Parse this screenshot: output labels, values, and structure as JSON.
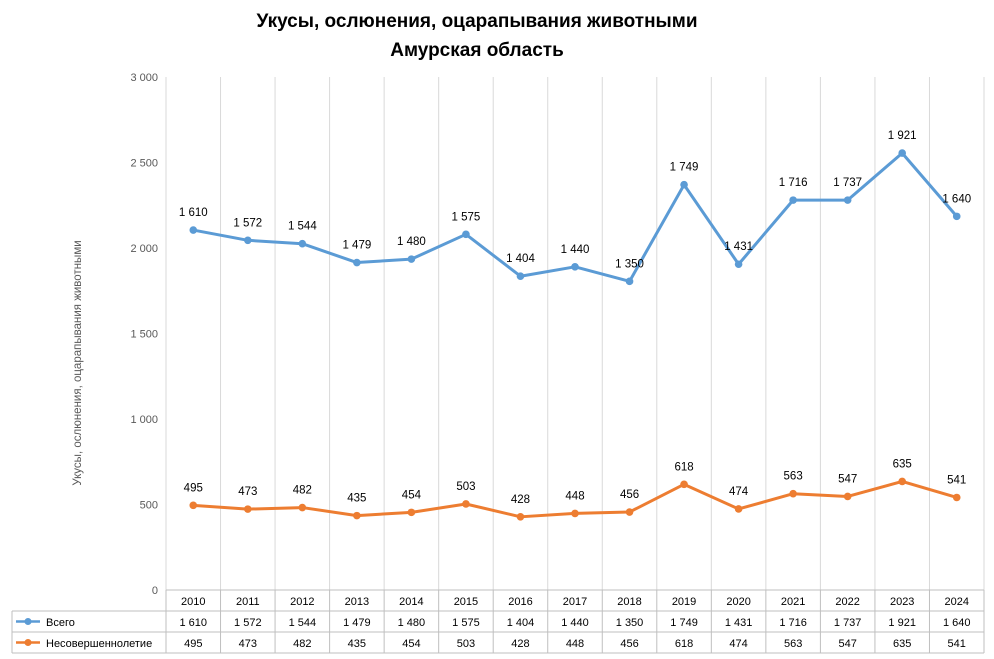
{
  "chart_data": {
    "type": "line",
    "title": "Укусы, ослюнения, оцарапывания животными",
    "subtitle": "Амурская область",
    "ylabel": "Укусы, ослюнения, оцарапывания животными",
    "xlabel": "",
    "ylim": [
      0,
      3000
    ],
    "yticks": [
      "0",
      "500",
      "1 000",
      "1 500",
      "2 000",
      "2 500",
      "3 000"
    ],
    "grid": "vertical",
    "legend": "data-table",
    "categories": [
      "2010",
      "2011",
      "2012",
      "2013",
      "2014",
      "2015",
      "2016",
      "2017",
      "2018",
      "2019",
      "2020",
      "2021",
      "2022",
      "2023",
      "2024"
    ],
    "series": [
      {
        "name": "Всего",
        "color": "#5B9BD5",
        "values": [
          2105,
          2045,
          2025,
          1915,
          1935,
          2080,
          1835,
          1890,
          1805,
          2370,
          1905,
          2280,
          2280,
          2555,
          2185
        ],
        "labels": [
          "1 610",
          "1 572",
          "1 544",
          "1 479",
          "1 480",
          "1 575",
          "1 404",
          "1 440",
          "1 350",
          "1 749",
          "1 431",
          "1 716",
          "1 737",
          "1 921",
          "1 640"
        ]
      },
      {
        "name": "Несовершеннолетие",
        "color": "#ED7D31",
        "values": [
          495,
          473,
          482,
          435,
          454,
          503,
          428,
          448,
          456,
          618,
          474,
          563,
          547,
          635,
          541
        ],
        "labels": [
          "495",
          "473",
          "482",
          "435",
          "454",
          "503",
          "428",
          "448",
          "456",
          "618",
          "474",
          "563",
          "547",
          "635",
          "541"
        ]
      }
    ]
  }
}
